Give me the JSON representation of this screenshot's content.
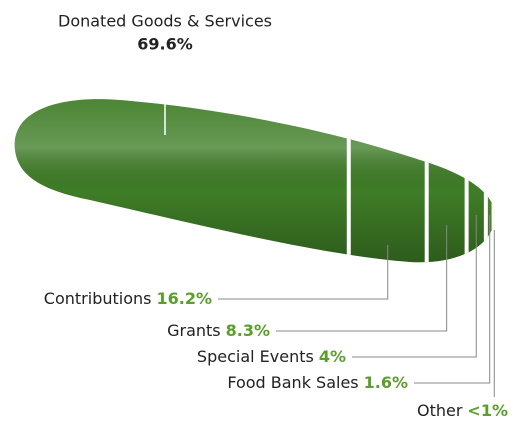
{
  "chart_data": {
    "type": "bar",
    "categories": [
      "Donated Goods & Services",
      "Contributions",
      "Grants",
      "Special Events",
      "Food Bank Sales",
      "Other"
    ],
    "values": [
      69.6,
      16.2,
      8.3,
      4,
      1.6,
      0.3
    ],
    "value_labels": [
      "69.6%",
      "16.2%",
      "8.3%",
      "4%",
      "1.6%",
      "<1%"
    ],
    "colors": [
      "#3f7d27",
      "#3f7d27",
      "#3f7d27",
      "#3f7d27",
      "#4d8a2c",
      "#a6d25a"
    ],
    "label_color": "#5c9e2e"
  }
}
